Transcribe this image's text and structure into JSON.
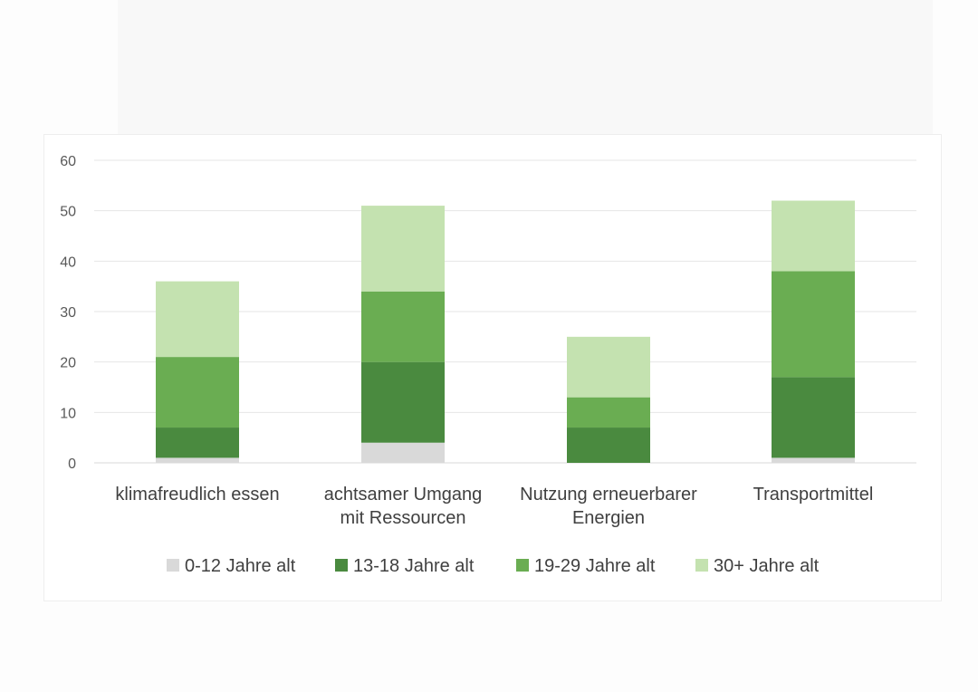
{
  "chart_data": {
    "type": "bar",
    "stacked": true,
    "categories": [
      [
        "klimafreudlich essen"
      ],
      [
        "achtsamer Umgang",
        "mit Ressourcen"
      ],
      [
        "Nutzung erneuerbarer",
        "Energien"
      ],
      [
        "Transportmittel"
      ]
    ],
    "series": [
      {
        "name": "0-12 Jahre alt",
        "color": "#d9d9d9",
        "values": [
          1,
          4,
          0,
          1
        ]
      },
      {
        "name": "13-18 Jahre alt",
        "color": "#4a8a3f",
        "values": [
          6,
          16,
          7,
          16
        ]
      },
      {
        "name": "19-29 Jahre alt",
        "color": "#6aad52",
        "values": [
          14,
          14,
          6,
          21
        ]
      },
      {
        "name": "30+ Jahre alt",
        "color": "#c4e2b0",
        "values": [
          15,
          17,
          12,
          14
        ]
      }
    ],
    "ylim": [
      0,
      60
    ],
    "yticks": [
      0,
      10,
      20,
      30,
      40,
      50,
      60
    ],
    "grid": true,
    "legend_position": "bottom",
    "title": "",
    "xlabel": "",
    "ylabel": ""
  }
}
